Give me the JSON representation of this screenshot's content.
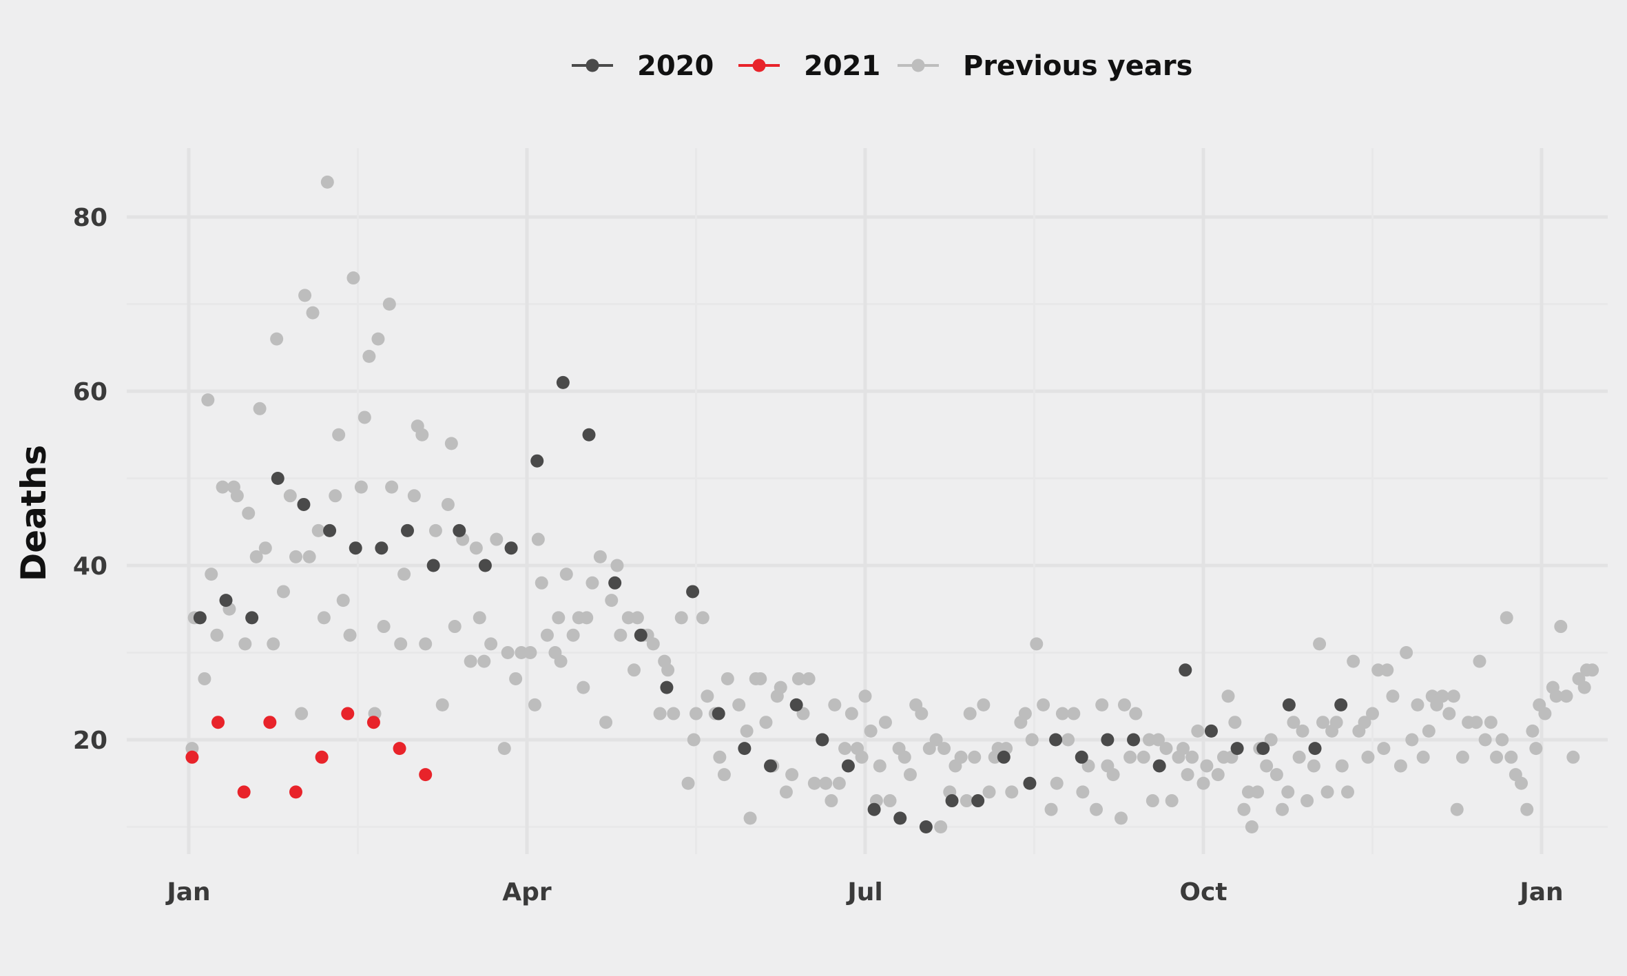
{
  "chart_data": {
    "type": "scatter",
    "ylabel": "Deaths",
    "xlabel": "",
    "x_axis": "month",
    "xlim": [
      0,
      12.1
    ],
    "ylim": [
      7,
      88
    ],
    "x_ticks": [
      {
        "label": "Jan",
        "value": 0
      },
      {
        "label": "Apr",
        "value": 3
      },
      {
        "label": "Jul",
        "value": 6
      },
      {
        "label": "Oct",
        "value": 9
      },
      {
        "label": "Jan",
        "value": 12
      }
    ],
    "y_ticks": [
      20,
      40,
      60,
      80
    ],
    "grid": true,
    "legend_position": "top",
    "series": [
      {
        "name": "Previous years",
        "color": "#bdbdbd",
        "points": [
          [
            0.03,
            19
          ],
          [
            0.05,
            34
          ],
          [
            0.14,
            27
          ],
          [
            0.17,
            59
          ],
          [
            0.2,
            39
          ],
          [
            0.25,
            32
          ],
          [
            0.3,
            49
          ],
          [
            0.36,
            35
          ],
          [
            0.4,
            49
          ],
          [
            0.43,
            48
          ],
          [
            0.5,
            31
          ],
          [
            0.53,
            46
          ],
          [
            0.6,
            41
          ],
          [
            0.63,
            58
          ],
          [
            0.68,
            42
          ],
          [
            0.75,
            31
          ],
          [
            0.78,
            66
          ],
          [
            0.84,
            37
          ],
          [
            0.9,
            48
          ],
          [
            0.95,
            41
          ],
          [
            1.0,
            23
          ],
          [
            1.03,
            71
          ],
          [
            1.07,
            41
          ],
          [
            1.1,
            69
          ],
          [
            1.15,
            44
          ],
          [
            1.2,
            34
          ],
          [
            1.23,
            84
          ],
          [
            1.3,
            48
          ],
          [
            1.33,
            55
          ],
          [
            1.37,
            36
          ],
          [
            1.43,
            32
          ],
          [
            1.46,
            73
          ],
          [
            1.53,
            49
          ],
          [
            1.56,
            57
          ],
          [
            1.6,
            64
          ],
          [
            1.65,
            23
          ],
          [
            1.68,
            66
          ],
          [
            1.73,
            33
          ],
          [
            1.78,
            70
          ],
          [
            1.8,
            49
          ],
          [
            1.88,
            31
          ],
          [
            1.91,
            39
          ],
          [
            2.0,
            48
          ],
          [
            2.03,
            56
          ],
          [
            2.07,
            55
          ],
          [
            2.1,
            31
          ],
          [
            2.19,
            44
          ],
          [
            2.25,
            24
          ],
          [
            2.3,
            47
          ],
          [
            2.33,
            54
          ],
          [
            2.36,
            33
          ],
          [
            2.43,
            43
          ],
          [
            2.5,
            29
          ],
          [
            2.55,
            42
          ],
          [
            2.58,
            34
          ],
          [
            2.62,
            29
          ],
          [
            2.68,
            31
          ],
          [
            2.73,
            43
          ],
          [
            2.8,
            19
          ],
          [
            2.83,
            30
          ],
          [
            2.86,
            42
          ],
          [
            2.9,
            27
          ],
          [
            2.95,
            30
          ],
          [
            3.03,
            30
          ],
          [
            3.07,
            24
          ],
          [
            3.1,
            43
          ],
          [
            3.13,
            38
          ],
          [
            3.18,
            32
          ],
          [
            3.25,
            30
          ],
          [
            3.28,
            34
          ],
          [
            3.3,
            29
          ],
          [
            3.35,
            39
          ],
          [
            3.41,
            32
          ],
          [
            3.46,
            34
          ],
          [
            3.5,
            26
          ],
          [
            3.53,
            34
          ],
          [
            3.58,
            38
          ],
          [
            3.65,
            41
          ],
          [
            3.7,
            22
          ],
          [
            3.75,
            36
          ],
          [
            3.8,
            40
          ],
          [
            3.83,
            32
          ],
          [
            3.9,
            34
          ],
          [
            3.95,
            28
          ],
          [
            3.98,
            34
          ],
          [
            4.03,
            32
          ],
          [
            4.07,
            32
          ],
          [
            4.12,
            31
          ],
          [
            4.18,
            23
          ],
          [
            4.22,
            29
          ],
          [
            4.25,
            28
          ],
          [
            4.3,
            23
          ],
          [
            4.37,
            34
          ],
          [
            4.43,
            15
          ],
          [
            4.48,
            20
          ],
          [
            4.5,
            23
          ],
          [
            4.56,
            34
          ],
          [
            4.6,
            25
          ],
          [
            4.67,
            23
          ],
          [
            4.71,
            18
          ],
          [
            4.75,
            16
          ],
          [
            4.78,
            27
          ],
          [
            4.88,
            24
          ],
          [
            4.95,
            21
          ],
          [
            4.98,
            11
          ],
          [
            5.03,
            27
          ],
          [
            5.07,
            27
          ],
          [
            5.12,
            22
          ],
          [
            5.18,
            17
          ],
          [
            5.22,
            25
          ],
          [
            5.25,
            26
          ],
          [
            5.3,
            14
          ],
          [
            5.35,
            16
          ],
          [
            5.41,
            27
          ],
          [
            5.45,
            23
          ],
          [
            5.5,
            27
          ],
          [
            5.55,
            15
          ],
          [
            5.62,
            20
          ],
          [
            5.65,
            15
          ],
          [
            5.7,
            13
          ],
          [
            5.73,
            24
          ],
          [
            5.77,
            15
          ],
          [
            5.82,
            19
          ],
          [
            5.88,
            23
          ],
          [
            5.93,
            19
          ],
          [
            5.97,
            18
          ],
          [
            6.0,
            25
          ],
          [
            6.05,
            21
          ],
          [
            6.1,
            13
          ],
          [
            6.13,
            17
          ],
          [
            6.18,
            22
          ],
          [
            6.22,
            13
          ],
          [
            6.3,
            19
          ],
          [
            6.35,
            18
          ],
          [
            6.4,
            16
          ],
          [
            6.45,
            24
          ],
          [
            6.5,
            23
          ],
          [
            6.57,
            19
          ],
          [
            6.63,
            20
          ],
          [
            6.67,
            10
          ],
          [
            6.7,
            19
          ],
          [
            6.75,
            14
          ],
          [
            6.8,
            17
          ],
          [
            6.85,
            18
          ],
          [
            6.9,
            13
          ],
          [
            6.93,
            23
          ],
          [
            6.97,
            18
          ],
          [
            7.05,
            24
          ],
          [
            7.1,
            14
          ],
          [
            7.15,
            18
          ],
          [
            7.18,
            19
          ],
          [
            7.25,
            19
          ],
          [
            7.3,
            14
          ],
          [
            7.38,
            22
          ],
          [
            7.42,
            23
          ],
          [
            7.48,
            20
          ],
          [
            7.52,
            31
          ],
          [
            7.58,
            24
          ],
          [
            7.65,
            12
          ],
          [
            7.7,
            15
          ],
          [
            7.75,
            23
          ],
          [
            7.8,
            20
          ],
          [
            7.85,
            23
          ],
          [
            7.93,
            14
          ],
          [
            7.98,
            17
          ],
          [
            8.05,
            12
          ],
          [
            8.1,
            24
          ],
          [
            8.15,
            17
          ],
          [
            8.2,
            16
          ],
          [
            8.27,
            11
          ],
          [
            8.3,
            24
          ],
          [
            8.35,
            18
          ],
          [
            8.4,
            23
          ],
          [
            8.47,
            18
          ],
          [
            8.52,
            20
          ],
          [
            8.55,
            13
          ],
          [
            8.6,
            20
          ],
          [
            8.67,
            19
          ],
          [
            8.72,
            13
          ],
          [
            8.78,
            18
          ],
          [
            8.82,
            19
          ],
          [
            8.86,
            16
          ],
          [
            8.9,
            18
          ],
          [
            8.95,
            21
          ],
          [
            9.0,
            15
          ],
          [
            9.03,
            17
          ],
          [
            9.07,
            21
          ],
          [
            9.13,
            16
          ],
          [
            9.18,
            18
          ],
          [
            9.22,
            25
          ],
          [
            9.25,
            18
          ],
          [
            9.28,
            22
          ],
          [
            9.36,
            12
          ],
          [
            9.4,
            14
          ],
          [
            9.43,
            10
          ],
          [
            9.48,
            14
          ],
          [
            9.5,
            19
          ],
          [
            9.56,
            17
          ],
          [
            9.6,
            20
          ],
          [
            9.65,
            16
          ],
          [
            9.7,
            12
          ],
          [
            9.75,
            14
          ],
          [
            9.8,
            22
          ],
          [
            9.85,
            18
          ],
          [
            9.88,
            21
          ],
          [
            9.92,
            13
          ],
          [
            9.98,
            17
          ],
          [
            10.03,
            31
          ],
          [
            10.06,
            22
          ],
          [
            10.1,
            14
          ],
          [
            10.14,
            21
          ],
          [
            10.18,
            22
          ],
          [
            10.23,
            17
          ],
          [
            10.28,
            14
          ],
          [
            10.33,
            29
          ],
          [
            10.38,
            21
          ],
          [
            10.43,
            22
          ],
          [
            10.46,
            18
          ],
          [
            10.5,
            23
          ],
          [
            10.55,
            28
          ],
          [
            10.6,
            19
          ],
          [
            10.63,
            28
          ],
          [
            10.68,
            25
          ],
          [
            10.75,
            17
          ],
          [
            10.8,
            30
          ],
          [
            10.85,
            20
          ],
          [
            10.9,
            24
          ],
          [
            10.95,
            18
          ],
          [
            11.0,
            21
          ],
          [
            11.03,
            25
          ],
          [
            11.07,
            24
          ],
          [
            11.12,
            25
          ],
          [
            11.18,
            23
          ],
          [
            11.22,
            25
          ],
          [
            11.25,
            12
          ],
          [
            11.3,
            18
          ],
          [
            11.35,
            22
          ],
          [
            11.42,
            22
          ],
          [
            11.45,
            29
          ],
          [
            11.5,
            20
          ],
          [
            11.55,
            22
          ],
          [
            11.6,
            18
          ],
          [
            11.65,
            20
          ],
          [
            11.69,
            34
          ],
          [
            11.73,
            18
          ],
          [
            11.77,
            16
          ],
          [
            11.82,
            15
          ],
          [
            11.87,
            12
          ],
          [
            11.92,
            21
          ],
          [
            11.95,
            19
          ],
          [
            11.98,
            24
          ],
          [
            12.03,
            23
          ],
          [
            12.1,
            26
          ],
          [
            12.13,
            25
          ],
          [
            12.17,
            33
          ],
          [
            12.22,
            25
          ],
          [
            12.28,
            18
          ],
          [
            12.33,
            27
          ],
          [
            12.38,
            26
          ],
          [
            12.4,
            28
          ],
          [
            12.45,
            28
          ]
        ]
      },
      {
        "name": "2020",
        "color": "#4a4a4a",
        "points": [
          [
            0.1,
            34
          ],
          [
            0.33,
            36
          ],
          [
            0.56,
            34
          ],
          [
            0.79,
            50
          ],
          [
            1.02,
            47
          ],
          [
            1.25,
            44
          ],
          [
            1.48,
            42
          ],
          [
            1.71,
            42
          ],
          [
            1.94,
            44
          ],
          [
            2.17,
            40
          ],
          [
            2.4,
            44
          ],
          [
            2.63,
            40
          ],
          [
            2.86,
            42
          ],
          [
            3.09,
            52
          ],
          [
            3.32,
            61
          ],
          [
            3.55,
            55
          ],
          [
            3.78,
            38
          ],
          [
            4.01,
            32
          ],
          [
            4.24,
            26
          ],
          [
            4.47,
            37
          ],
          [
            4.7,
            23
          ],
          [
            4.93,
            19
          ],
          [
            5.16,
            17
          ],
          [
            5.39,
            24
          ],
          [
            5.62,
            20
          ],
          [
            5.85,
            17
          ],
          [
            6.08,
            12
          ],
          [
            6.31,
            11
          ],
          [
            6.54,
            10
          ],
          [
            6.77,
            13
          ],
          [
            7.0,
            13
          ],
          [
            7.23,
            18
          ],
          [
            7.46,
            15
          ],
          [
            7.69,
            20
          ],
          [
            7.92,
            18
          ],
          [
            8.15,
            20
          ],
          [
            8.38,
            20
          ],
          [
            8.61,
            17
          ],
          [
            8.84,
            28
          ],
          [
            9.07,
            21
          ],
          [
            9.3,
            19
          ],
          [
            9.53,
            19
          ],
          [
            9.76,
            24
          ],
          [
            9.99,
            19
          ],
          [
            10.22,
            24
          ]
        ]
      },
      {
        "name": "2021",
        "color": "#e8232a",
        "points": [
          [
            0.03,
            18
          ],
          [
            0.26,
            22
          ],
          [
            0.49,
            14
          ],
          [
            0.72,
            22
          ],
          [
            0.95,
            14
          ],
          [
            1.18,
            18
          ],
          [
            1.41,
            23
          ],
          [
            1.64,
            22
          ],
          [
            1.87,
            19
          ],
          [
            2.1,
            16
          ]
        ]
      }
    ]
  }
}
